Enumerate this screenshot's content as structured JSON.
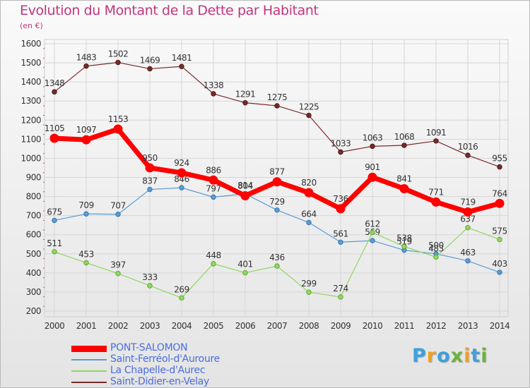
{
  "chart_data": {
    "type": "line",
    "title": "Evolution du Montant de la Dette par Habitant",
    "subtitle": "(en €)",
    "x": [
      "2000",
      "2001",
      "2002",
      "2003",
      "2004",
      "2005",
      "2006",
      "2007",
      "2008",
      "2009",
      "2010",
      "2011",
      "2012",
      "2013",
      "2014"
    ],
    "ylim": [
      200,
      1600
    ],
    "yticks": [
      200,
      300,
      400,
      500,
      600,
      700,
      800,
      900,
      1000,
      1100,
      1200,
      1300,
      1400,
      1500,
      1600
    ],
    "grid": true,
    "legend_position": "bottom-left",
    "series": [
      {
        "name": "Saint-Didier-en-Velay",
        "color": "#7a2a2a",
        "values": [
          1348,
          1483,
          1502,
          1469,
          1481,
          1338,
          1291,
          1275,
          1225,
          1033,
          1063,
          1068,
          1091,
          1016,
          955
        ]
      },
      {
        "name": "Saint-Ferréol-d'Auroure",
        "color": "#5b9bd5",
        "values": [
          675,
          709,
          707,
          837,
          846,
          797,
          814,
          729,
          664,
          561,
          569,
          519,
          500,
          463,
          403
        ]
      },
      {
        "name": "La Chapelle-d'Aurec",
        "color": "#90d660",
        "values": [
          511,
          453,
          397,
          333,
          269,
          448,
          401,
          436,
          299,
          274,
          612,
          538,
          483,
          637,
          575
        ]
      },
      {
        "name": "PONT-SALOMON",
        "color": "#ff0000",
        "values": [
          1105,
          1097,
          1153,
          950,
          924,
          886,
          804,
          877,
          820,
          736,
          901,
          841,
          771,
          719,
          764
        ]
      }
    ],
    "data_labels": [
      [
        "1348",
        "1483",
        "1502",
        "1469",
        "1481",
        "1338",
        "1291",
        "1275",
        "1225",
        "1033",
        "1063",
        "1068",
        "1091",
        "1016",
        "955"
      ],
      [
        "675",
        "709",
        "707",
        "837",
        "846",
        "797",
        "814",
        "729",
        "664",
        "561",
        "569",
        "519",
        "500",
        "463",
        "403"
      ],
      [
        "511",
        "453",
        "397",
        "333",
        "269",
        "448",
        "401",
        "436",
        "299",
        "274",
        "612",
        "538",
        "483",
        "637",
        "575"
      ],
      [
        "1105",
        "1097",
        "1153",
        "950",
        "924",
        "886",
        "804",
        "877",
        "820",
        "736",
        "901",
        "841",
        "771",
        "719",
        "764"
      ]
    ]
  },
  "legend": [
    {
      "label": "PONT-SALOMON",
      "color": "#ff0000"
    },
    {
      "label": "Saint-Ferréol-d'Auroure",
      "color": "#5b9bd5"
    },
    {
      "label": "La Chapelle-d'Aurec",
      "color": "#90d660"
    },
    {
      "label": "Saint-Didier-en-Velay",
      "color": "#7a2a2a"
    }
  ],
  "logo": {
    "letters": [
      "P",
      "r",
      "o",
      "x",
      "i",
      "t",
      "i"
    ],
    "colors": [
      "#3fa0dc",
      "#f0a020",
      "#3fa0dc",
      "#6cb33e",
      "#f0a020",
      "#3fa0dc",
      "#6cb33e"
    ]
  }
}
